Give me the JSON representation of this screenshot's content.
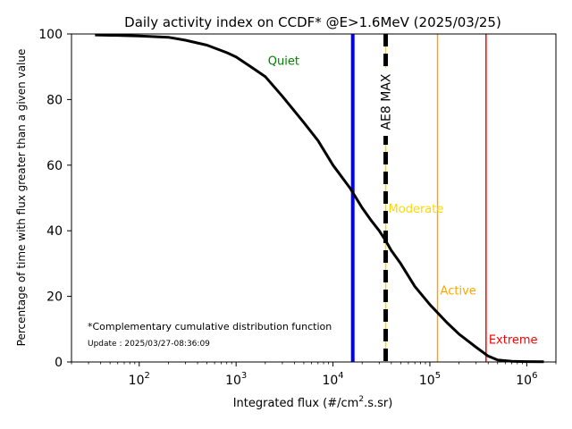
{
  "chart_data": {
    "type": "line",
    "title": "Daily activity index on CCDF* @E>1.6MeV (2025/03/25)",
    "xlabel_main": "Integrated flux (#/cm",
    "xlabel_sup": "2",
    "xlabel_tail": ".s.sr)",
    "ylabel": "Percentage of time with flux greater than a given value",
    "x_scale": "log",
    "xlim": [
      20,
      2000000
    ],
    "ylim": [
      0,
      100
    ],
    "grid": false,
    "x_ticks": [
      {
        "value": 100,
        "base": "10",
        "exp": "2"
      },
      {
        "value": 1000,
        "base": "10",
        "exp": "3"
      },
      {
        "value": 10000,
        "base": "10",
        "exp": "4"
      },
      {
        "value": 100000,
        "base": "10",
        "exp": "5"
      },
      {
        "value": 1000000,
        "base": "10",
        "exp": "6"
      }
    ],
    "y_ticks": [
      0,
      20,
      40,
      60,
      80,
      100
    ],
    "series": [
      {
        "color": "#000000",
        "x": [
          35,
          100,
          200,
          300,
          500,
          800,
          1000,
          1500,
          2000,
          3000,
          4000,
          5000,
          7000,
          10000,
          15000,
          20000,
          25000,
          30000,
          35000,
          40000,
          50000,
          70000,
          100000,
          150000,
          200000,
          300000,
          400000,
          500000,
          700000,
          1000000,
          1500000
        ],
        "y": [
          99.7,
          99.4,
          99.0,
          98.1,
          96.6,
          94.3,
          93.0,
          89.5,
          87.0,
          81.0,
          76.5,
          73.0,
          67.5,
          60.0,
          53.0,
          47.0,
          43.0,
          40.0,
          37.0,
          34.0,
          30.0,
          23.0,
          17.5,
          12.0,
          8.5,
          4.5,
          1.8,
          0.6,
          0.2,
          0.1,
          0.05
        ]
      }
    ],
    "thresholds": [
      {
        "name": "Quiet",
        "x": null,
        "color": "#008000",
        "label_x": 2000,
        "label_y": 90
      },
      {
        "name": "Moderate",
        "x": 35000,
        "color": "#ffd700",
        "label_x": 35000,
        "label_y": 45
      },
      {
        "name": "Active",
        "x": 120000,
        "color": "#ffa500",
        "label_x": 120000,
        "label_y": 20
      },
      {
        "name": "Extreme",
        "x": 380000,
        "color": "#ff0000",
        "label_x": 380000,
        "label_y": 5
      }
    ],
    "reference_lines": [
      {
        "label": "",
        "x": 16000,
        "color": "#0000ff",
        "style": "solid"
      },
      {
        "label": "AE8 MAX",
        "x": 35000,
        "color": "#000000",
        "style": "dashed"
      }
    ],
    "annotations": {
      "footnote": "*Complementary cumulative distribution function",
      "update": "Update : 2025/03/27-08:36:09"
    }
  }
}
